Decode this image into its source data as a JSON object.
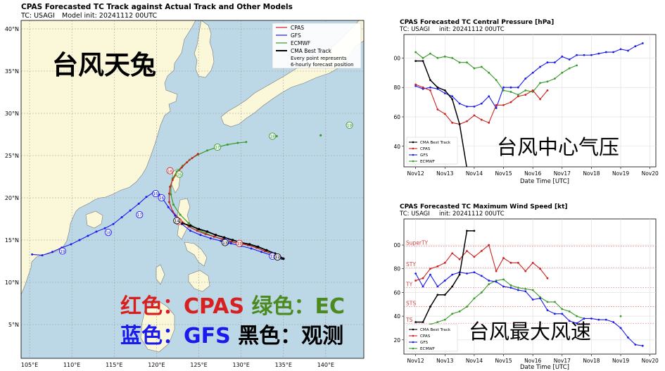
{
  "colors": {
    "cpas": "#cc2222",
    "gfs": "#1a1aee",
    "ecmwf": "#3a9a2a",
    "obs": "#000000",
    "sea": "#bcd7e6",
    "land": "#fbf8d9"
  },
  "overlays": {
    "map_title": "台风天兔",
    "legend_line1": {
      "a": "红色：",
      "b": "CPAS",
      "c": " 绿色：",
      "d": "EC"
    },
    "legend_line2": {
      "a": "蓝色：",
      "b": "GFS",
      "c": " 黑色：",
      "d": "观测"
    },
    "pressure_title": "台风中心气压",
    "wind_title": "台风最大风速"
  },
  "chart_data": [
    {
      "type": "map",
      "title": "CPAS Forecasted TC Track against Actual Track and Other Models",
      "subtitle_tc": "TC: USAGI",
      "subtitle_init": "Model init: 20241112 00UTC",
      "lon_ticks": [
        "105°E",
        "110°E",
        "115°E",
        "120°E",
        "125°E",
        "130°E",
        "135°E",
        "140°E"
      ],
      "lat_ticks": [
        "5°N",
        "10°N",
        "15°N",
        "20°N",
        "25°N",
        "30°N",
        "35°N",
        "40°N"
      ],
      "xlim": [
        104,
        144.5
      ],
      "ylim": [
        1,
        41
      ],
      "legend": [
        "CPAS",
        "GFS",
        "ECMWF",
        "CMA Best Track"
      ],
      "legend_note_1": "Every point represents",
      "legend_note_2": "6-hourly forecast position",
      "series": {
        "cpas": {
          "lon": [
            134.8,
            133.8,
            132.8,
            131.8,
            130.8,
            129.8,
            128.8,
            127.8,
            126.8,
            125.8,
            124.8,
            123.8,
            122.8,
            121.9,
            121.5,
            121.5,
            121.6,
            121.9,
            122.4,
            123.0,
            123.6,
            124.2,
            124.9
          ],
          "lat": [
            12.8,
            13.3,
            13.7,
            14.1,
            14.4,
            14.6,
            14.8,
            15.1,
            15.4,
            15.7,
            16.1,
            16.6,
            17.4,
            18.4,
            19.5,
            20.5,
            21.3,
            22.1,
            22.9,
            23.6,
            24.2,
            24.7,
            25.2
          ]
        },
        "gfs": {
          "lon": [
            134.8,
            133.6,
            132.4,
            131.2,
            130.0,
            128.8,
            127.6,
            126.4,
            125.2,
            124.0,
            123.0,
            122.2,
            121.4,
            120.8,
            120.3,
            119.6,
            118.8,
            117.9,
            116.9,
            115.9,
            114.9,
            113.9,
            112.9,
            111.9,
            110.9,
            109.9,
            108.8,
            107.7,
            106.5,
            105.3
          ],
          "lat": [
            12.8,
            13.2,
            13.6,
            14.0,
            14.3,
            14.6,
            14.9,
            15.2,
            15.6,
            16.1,
            16.9,
            17.9,
            18.9,
            19.8,
            20.4,
            20.6,
            20.1,
            19.3,
            18.5,
            17.7,
            16.9,
            16.4,
            16.0,
            15.5,
            15.0,
            14.5,
            14.1,
            13.6,
            13.2,
            13.3
          ]
        },
        "ecmwf": {
          "lon": [
            134.8,
            133.8,
            132.8,
            131.8,
            130.8,
            129.8,
            128.8,
            127.8,
            126.8,
            125.8,
            124.8,
            123.8,
            122.8,
            122.0,
            121.7,
            121.7,
            121.9,
            122.4,
            123.1,
            123.9,
            124.9,
            126.0,
            127.2,
            128.4,
            129.6,
            130.6
          ],
          "lat": [
            12.8,
            13.3,
            13.7,
            14.1,
            14.4,
            14.6,
            14.8,
            15.1,
            15.4,
            15.8,
            16.3,
            17.0,
            18.0,
            19.2,
            20.4,
            21.4,
            22.3,
            23.1,
            23.8,
            24.5,
            25.1,
            25.6,
            26.0,
            26.3,
            26.5,
            26.6
          ]
        },
        "ecmwf_extra": {
          "lon": [
            134.2,
            139.4
          ],
          "lat": [
            27.3,
            27.4
          ]
        },
        "obs": {
          "lon": [
            135.0,
            134.0,
            133.0,
            132.0,
            131.0,
            130.0,
            129.0,
            128.0,
            127.0,
            126.0,
            125.0,
            124.0,
            123.0,
            122.3
          ],
          "lat": [
            12.8,
            13.4,
            13.8,
            14.2,
            14.5,
            14.7,
            15.0,
            15.3,
            15.6,
            16.0,
            16.3,
            16.7,
            17.0,
            17.3
          ]
        }
      },
      "markers": {
        "ecmwf": [
          {
            "lon": 142.8,
            "lat": 28.6,
            "label": "19"
          },
          {
            "lon": 133.7,
            "lat": 27.3,
            "label": "18"
          },
          {
            "lon": 127.2,
            "lat": 26.0,
            "label": "17"
          },
          {
            "lon": 122.7,
            "lat": 22.8,
            "label": "16"
          }
        ],
        "cpas": [
          {
            "lon": 121.6,
            "lat": 23.2,
            "label": "16"
          },
          {
            "lon": 122.6,
            "lat": 17.2,
            "label": "14"
          },
          {
            "lon": 129.8,
            "lat": 14.6,
            "label": "13"
          }
        ],
        "gfs": [
          {
            "lon": 108.9,
            "lat": 13.7,
            "label": "19"
          },
          {
            "lon": 114.3,
            "lat": 15.9,
            "label": "18"
          },
          {
            "lon": 118.0,
            "lat": 18.0,
            "label": "17"
          },
          {
            "lon": 120.6,
            "lat": 20.0,
            "label": "16"
          },
          {
            "lon": 119.9,
            "lat": 20.5,
            "label": "15"
          },
          {
            "lon": 128.2,
            "lat": 14.8,
            "label": "13"
          },
          {
            "lon": 133.7,
            "lat": 13.1,
            "label": "12"
          }
        ],
        "obs": [
          {
            "lon": 122.4,
            "lat": 17.3,
            "label": "14"
          },
          {
            "lon": 128.1,
            "lat": 14.7,
            "label": "13"
          },
          {
            "lon": 134.3,
            "lat": 13.0,
            "label": "12"
          }
        ]
      }
    },
    {
      "type": "line",
      "title": "CPAS Forecasted TC Central Pressure [hPa]",
      "subtitle_tc": "TC: USAGI",
      "subtitle_init": "init: 20241112 00UTC",
      "xlabel": "Date Time [UTC]",
      "ylabel": "",
      "xlim": [
        11.6,
        20.2
      ],
      "ylim": [
        926,
        1016
      ],
      "x_ticks": [
        {
          "v": 12,
          "t": "Nov12"
        },
        {
          "v": 13,
          "t": "Nov13"
        },
        {
          "v": 14,
          "t": "Nov14"
        },
        {
          "v": 15,
          "t": "Nov15"
        },
        {
          "v": 16,
          "t": "Nov16"
        },
        {
          "v": 17,
          "t": "Nov17"
        },
        {
          "v": 18,
          "t": "Nov18"
        },
        {
          "v": 19,
          "t": "Nov19"
        },
        {
          "v": 20,
          "t": "Nov20"
        }
      ],
      "y_ticks": [
        940,
        960,
        980,
        1000
      ],
      "legend": [
        "CMA Best Track",
        "CPAS",
        "GFS",
        "ECMWF"
      ],
      "series": [
        {
          "key": "obs",
          "name": "CMA Best Track",
          "x": [
            12.0,
            12.25,
            12.5,
            12.75,
            13.0,
            13.25,
            13.5,
            13.75,
            14.0
          ],
          "y": [
            998,
            998,
            985,
            980,
            978,
            972,
            955,
            925,
            925
          ]
        },
        {
          "key": "cpas",
          "name": "CPAS",
          "x": [
            12.0,
            12.25,
            12.5,
            12.75,
            13.0,
            13.25,
            13.5,
            13.75,
            14.0,
            14.25,
            14.5,
            14.75,
            15.0,
            15.25,
            15.5,
            15.75,
            16.0,
            16.25,
            16.5
          ],
          "y": [
            982,
            980,
            978,
            965,
            962,
            956,
            955,
            957,
            961,
            958,
            956,
            968,
            968,
            970,
            974,
            975,
            978,
            972,
            978
          ]
        },
        {
          "key": "gfs",
          "name": "GFS",
          "x": [
            12.0,
            12.25,
            12.5,
            12.75,
            13.0,
            13.25,
            13.5,
            13.75,
            14.0,
            14.25,
            14.5,
            14.75,
            15.0,
            15.25,
            15.5,
            15.75,
            16.0,
            16.25,
            16.5,
            16.75,
            17.0,
            17.25,
            17.5,
            17.75,
            18.0,
            18.25,
            18.5,
            18.75,
            19.0,
            19.25,
            19.5,
            19.75
          ],
          "y": [
            981,
            979,
            980,
            979,
            976,
            974,
            969,
            967,
            967,
            969,
            974,
            966,
            980,
            980,
            980,
            986,
            990,
            994,
            997,
            997,
            1001,
            999,
            1002,
            1002,
            1002,
            1003,
            1004,
            1004,
            1006,
            1005,
            1008,
            1010
          ]
        },
        {
          "key": "ecmwf",
          "name": "ECMWF",
          "x": [
            12.0,
            12.25,
            12.5,
            12.75,
            13.0,
            13.25,
            13.5,
            13.75,
            14.0,
            14.25,
            14.5,
            14.75,
            15.0,
            15.25,
            15.5,
            15.75,
            16.0,
            16.25,
            16.5,
            16.75,
            17.0,
            17.25,
            17.5
          ],
          "y": [
            1004,
            1000,
            1003,
            1000,
            1001,
            1000,
            997,
            997,
            993,
            994,
            990,
            985,
            978,
            977,
            975,
            978,
            977,
            983,
            984,
            986,
            990,
            993,
            995
          ]
        }
      ]
    },
    {
      "type": "line",
      "title": "CPAS Forecasted TC Maximum Wind Speed [kt]",
      "subtitle_tc": "TC: USAGI",
      "subtitle_init": "init: 20241112 00UTC",
      "xlabel": "Date Time [UTC]",
      "ylabel": "",
      "xlim": [
        11.6,
        20.2
      ],
      "ylim": [
        8,
        122
      ],
      "x_ticks": [
        {
          "v": 12,
          "t": "Nov12"
        },
        {
          "v": 13,
          "t": "Nov13"
        },
        {
          "v": 14,
          "t": "Nov14"
        },
        {
          "v": 15,
          "t": "Nov15"
        },
        {
          "v": 16,
          "t": "Nov16"
        },
        {
          "v": 17,
          "t": "Nov17"
        },
        {
          "v": 18,
          "t": "Nov18"
        },
        {
          "v": 19,
          "t": "Nov19"
        },
        {
          "v": 20,
          "t": "Nov20"
        }
      ],
      "y_ticks": [
        20,
        40,
        60,
        80,
        100
      ],
      "thresholds": [
        {
          "v": 34,
          "t": "TS"
        },
        {
          "v": 48,
          "t": "STS"
        },
        {
          "v": 64,
          "t": "TY"
        },
        {
          "v": 81,
          "t": "STY"
        },
        {
          "v": 99,
          "t": "SuperTY"
        }
      ],
      "legend": [
        "CMA Best Track",
        "CPAS",
        "GFS",
        "ECMWF"
      ],
      "series": [
        {
          "key": "obs",
          "name": "CMA Best Track",
          "x": [
            12.0,
            12.25,
            12.5,
            12.75,
            13.0,
            13.25,
            13.5,
            13.75,
            14.0
          ],
          "y": [
            35,
            35,
            48,
            58,
            58,
            65,
            75,
            112,
            112
          ]
        },
        {
          "key": "cpas",
          "name": "CPAS",
          "x": [
            12.0,
            12.25,
            12.5,
            12.75,
            13.0,
            13.25,
            13.5,
            13.75,
            14.0,
            14.25,
            14.5,
            14.75,
            15.0,
            15.25,
            15.5,
            15.75,
            16.0,
            16.25,
            16.5
          ],
          "y": [
            70,
            72,
            80,
            82,
            85,
            93,
            88,
            95,
            90,
            95,
            100,
            78,
            89,
            85,
            85,
            78,
            85,
            80,
            72
          ]
        },
        {
          "key": "gfs",
          "name": "GFS",
          "x": [
            12.0,
            12.25,
            12.5,
            12.75,
            13.0,
            13.25,
            13.5,
            13.75,
            14.0,
            14.25,
            14.5,
            14.75,
            15.0,
            15.25,
            15.5,
            15.75,
            16.0,
            16.25,
            16.5,
            16.75,
            17.0,
            17.25,
            17.5,
            17.75,
            18.0,
            18.25,
            18.5,
            18.75,
            19.0,
            19.25,
            19.5,
            19.75
          ],
          "y": [
            76,
            65,
            75,
            65,
            70,
            75,
            77,
            76,
            77,
            74,
            70,
            69,
            65,
            64,
            62,
            61,
            54,
            55,
            45,
            42,
            42,
            36,
            34,
            38,
            38,
            37,
            37,
            35,
            30,
            22,
            16,
            15
          ]
        },
        {
          "key": "ecmwf",
          "name": "ECMWF",
          "x": [
            12.0,
            12.25,
            12.5,
            12.75,
            13.0,
            13.25,
            13.5,
            13.75,
            14.0,
            14.25,
            14.5,
            14.75,
            15.0,
            15.25,
            15.5,
            15.75,
            16.0,
            16.25,
            16.5,
            16.75,
            17.0,
            17.25,
            17.5,
            17.75,
            18.0,
            18.25,
            18.5,
            18.75,
            19.0
          ],
          "y": [
            32,
            32,
            33,
            35,
            37,
            42,
            44,
            48,
            55,
            60,
            67,
            70,
            71,
            66,
            64,
            63,
            62,
            56,
            52,
            52,
            46,
            44,
            40,
            38,
            null,
            null,
            null,
            null,
            40
          ]
        }
      ]
    }
  ]
}
